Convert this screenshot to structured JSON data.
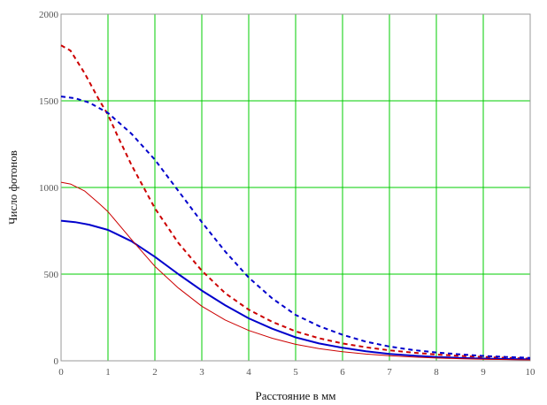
{
  "chart_data": {
    "type": "line",
    "title": "",
    "xlabel": "Расстояние в мм",
    "ylabel": "Число фотонов",
    "xlim": [
      0,
      10
    ],
    "ylim": [
      0,
      2000
    ],
    "xticks": [
      "0",
      "1",
      "2",
      "3",
      "4",
      "5",
      "6",
      "7",
      "8",
      "9",
      "10"
    ],
    "yticks": [
      "0",
      "500",
      "1000",
      "1500",
      "2000"
    ],
    "xtick_values": [
      0,
      1,
      2,
      3,
      4,
      5,
      6,
      7,
      8,
      9,
      10
    ],
    "ytick_values": [
      0,
      500,
      1000,
      1500,
      2000
    ],
    "grid": true,
    "grid_color": "#00cc00",
    "legend": "none",
    "series": [
      {
        "color": "#cc0000",
        "style": "dashed",
        "x": [
          0,
          0.2,
          0.5,
          0.8,
          1.0,
          1.2,
          1.5,
          1.8,
          2.0,
          2.5,
          3.0,
          3.5,
          4.0,
          4.5,
          5.0,
          5.5,
          6.0,
          6.5,
          7.0,
          7.5,
          8.0,
          8.5,
          9.0,
          9.5,
          10.0
        ],
        "y": [
          1820,
          1790,
          1660,
          1510,
          1420,
          1300,
          1130,
          980,
          880,
          680,
          520,
          390,
          295,
          225,
          170,
          130,
          100,
          78,
          60,
          47,
          36,
          28,
          22,
          17,
          13
        ]
      },
      {
        "color": "#0000cc",
        "style": "dashed",
        "x": [
          0,
          0.3,
          0.6,
          1.0,
          1.5,
          2.0,
          2.5,
          3.0,
          3.5,
          4.0,
          4.5,
          5.0,
          5.5,
          6.0,
          6.5,
          7.0,
          7.5,
          8.0,
          8.5,
          9.0,
          9.5,
          10.0
        ],
        "y": [
          1525,
          1515,
          1490,
          1430,
          1310,
          1160,
          980,
          800,
          630,
          480,
          360,
          265,
          200,
          150,
          110,
          82,
          62,
          48,
          37,
          28,
          22,
          17
        ]
      },
      {
        "color": "#0000cc",
        "style": "solid",
        "x": [
          0,
          0.3,
          0.6,
          1.0,
          1.5,
          2.0,
          2.5,
          3.0,
          3.5,
          4.0,
          4.5,
          5.0,
          5.5,
          6.0,
          6.5,
          7.0,
          7.5,
          8.0,
          8.5,
          9.0,
          9.5,
          10.0
        ],
        "y": [
          808,
          800,
          785,
          755,
          690,
          600,
          500,
          405,
          320,
          245,
          185,
          135,
          100,
          75,
          55,
          40,
          30,
          22,
          17,
          13,
          10,
          8
        ]
      },
      {
        "color": "#cc0000",
        "style": "thin",
        "x": [
          0,
          0.2,
          0.5,
          0.8,
          1.0,
          1.5,
          2.0,
          2.5,
          3.0,
          3.5,
          4.0,
          4.5,
          5.0,
          5.5,
          6.0,
          6.5,
          7.0,
          7.5,
          8.0,
          8.5,
          9.0,
          9.5,
          10.0
        ],
        "y": [
          1030,
          1020,
          980,
          910,
          860,
          700,
          545,
          420,
          315,
          235,
          175,
          130,
          95,
          70,
          52,
          39,
          29,
          22,
          16,
          12,
          9,
          7,
          5
        ]
      }
    ]
  }
}
